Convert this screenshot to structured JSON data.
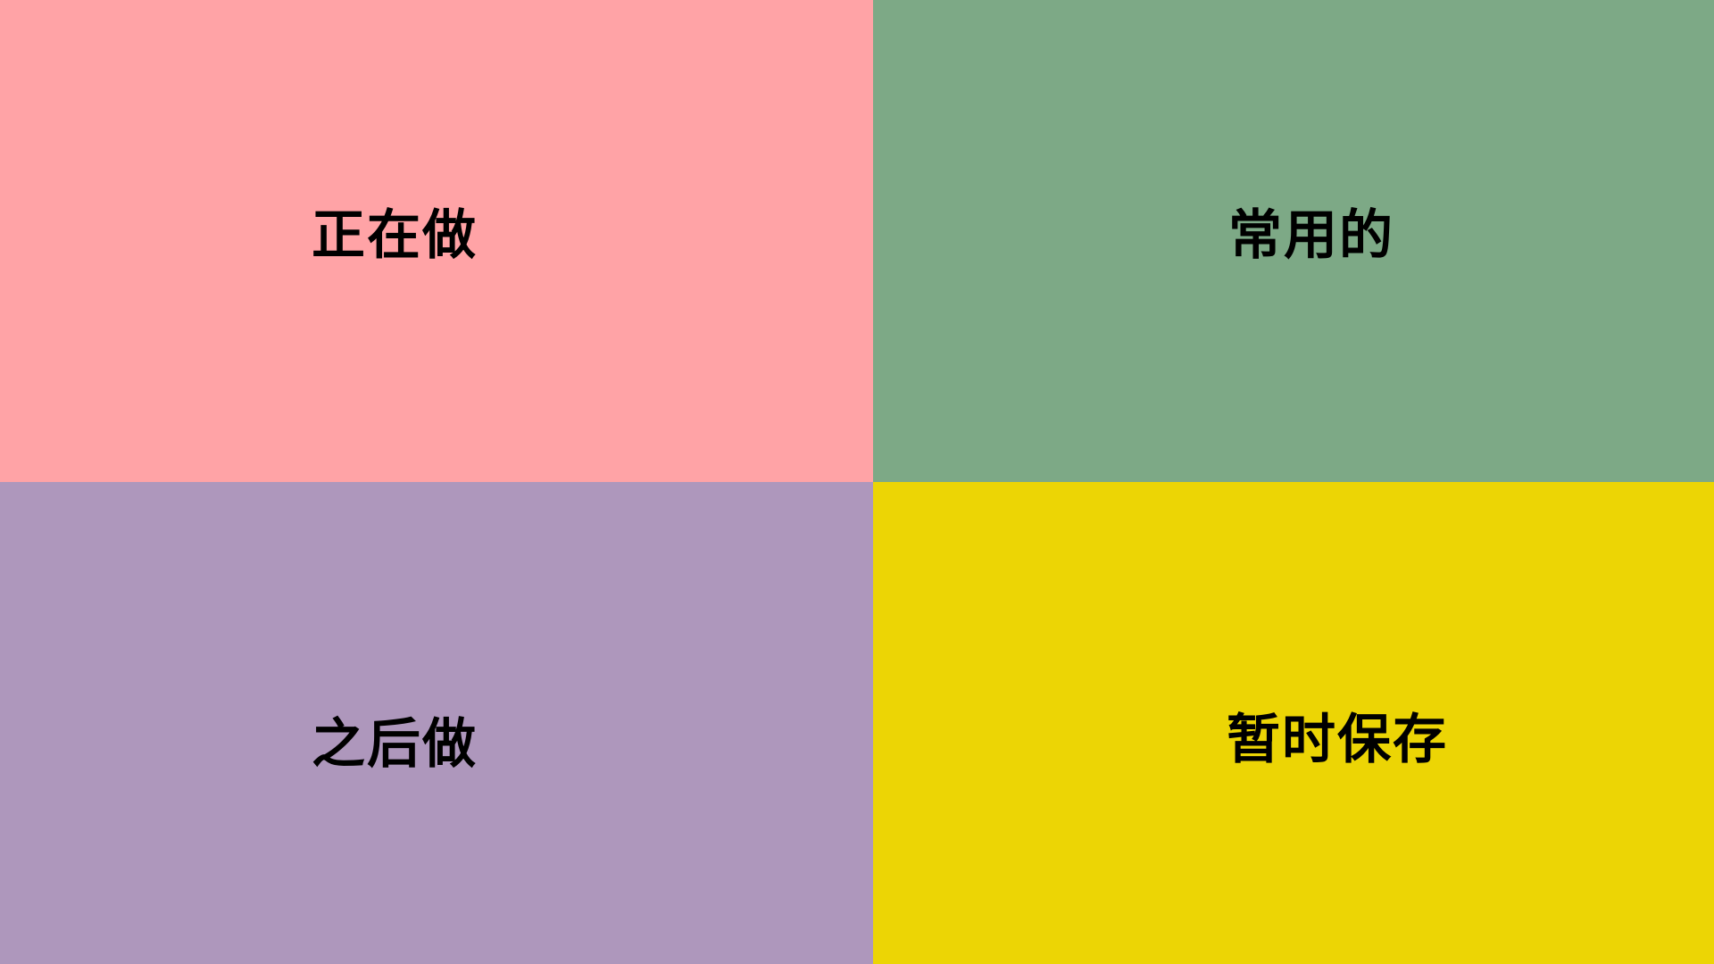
{
  "quadrants": {
    "doing": {
      "label": "正在做",
      "color": "#FFA3A6"
    },
    "frequent": {
      "label": "常用的",
      "color": "#7DA986"
    },
    "later": {
      "label": "之后做",
      "color": "#AE97BC"
    },
    "temp": {
      "label": "暂时保存",
      "color": "#ECD505"
    }
  }
}
